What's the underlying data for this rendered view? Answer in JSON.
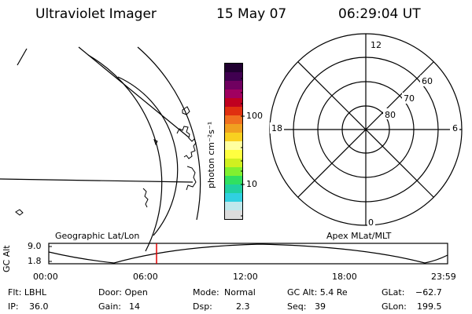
{
  "header": {
    "instrument": "Ultraviolet Imager",
    "date": "15 May 07",
    "time": "06:29:04 UT"
  },
  "colorbar": {
    "unit_label": "photon cm⁻²s⁻¹",
    "tick_100": "100",
    "tick_10": "10",
    "colors": [
      "#dcdcdc",
      "#c0e8ec",
      "#30d0e0",
      "#20d0a0",
      "#30e060",
      "#80f030",
      "#d0f020",
      "#ffff40",
      "#ffffa0",
      "#f8d020",
      "#f0a020",
      "#f07020",
      "#e03010",
      "#c00020",
      "#a00060",
      "#700060",
      "#400050",
      "#200030"
    ]
  },
  "polar": {
    "mlt_top": "12",
    "mlt_left": "18",
    "mlt_right": "6",
    "mlt_bottom": "0",
    "lat_60": "60",
    "lat_70": "70",
    "lat_80": "80"
  },
  "panels": {
    "left_title": "Geographic Lat/Lon",
    "right_title": "Apex MLat/MLT"
  },
  "altplot": {
    "ylabel": "GC Alt",
    "ytick_top": "9.0",
    "ytick_bottom": "1.8",
    "xticks": [
      "00:00",
      "06:00",
      "12:00",
      "18:00",
      "23:59"
    ],
    "current_time_color": "#e00000"
  },
  "info": {
    "filter": "Flt: LBHL",
    "door": "Door: Open",
    "mode_label": "Mode:",
    "mode_value": "Normal",
    "gc_alt": "GC Alt: 5.4 Re",
    "glat_label": "GLat:",
    "glat_value": "−62.7",
    "ip_label": "IP:",
    "ip_value": "36.0",
    "gain_label": "Gain:",
    "gain_value": "14",
    "dsp_label": "Dsp:",
    "dsp_value": "2.3",
    "seq_label": "Seq:",
    "seq_value": "39",
    "glon_label": "GLon:",
    "glon_value": "199.5"
  }
}
